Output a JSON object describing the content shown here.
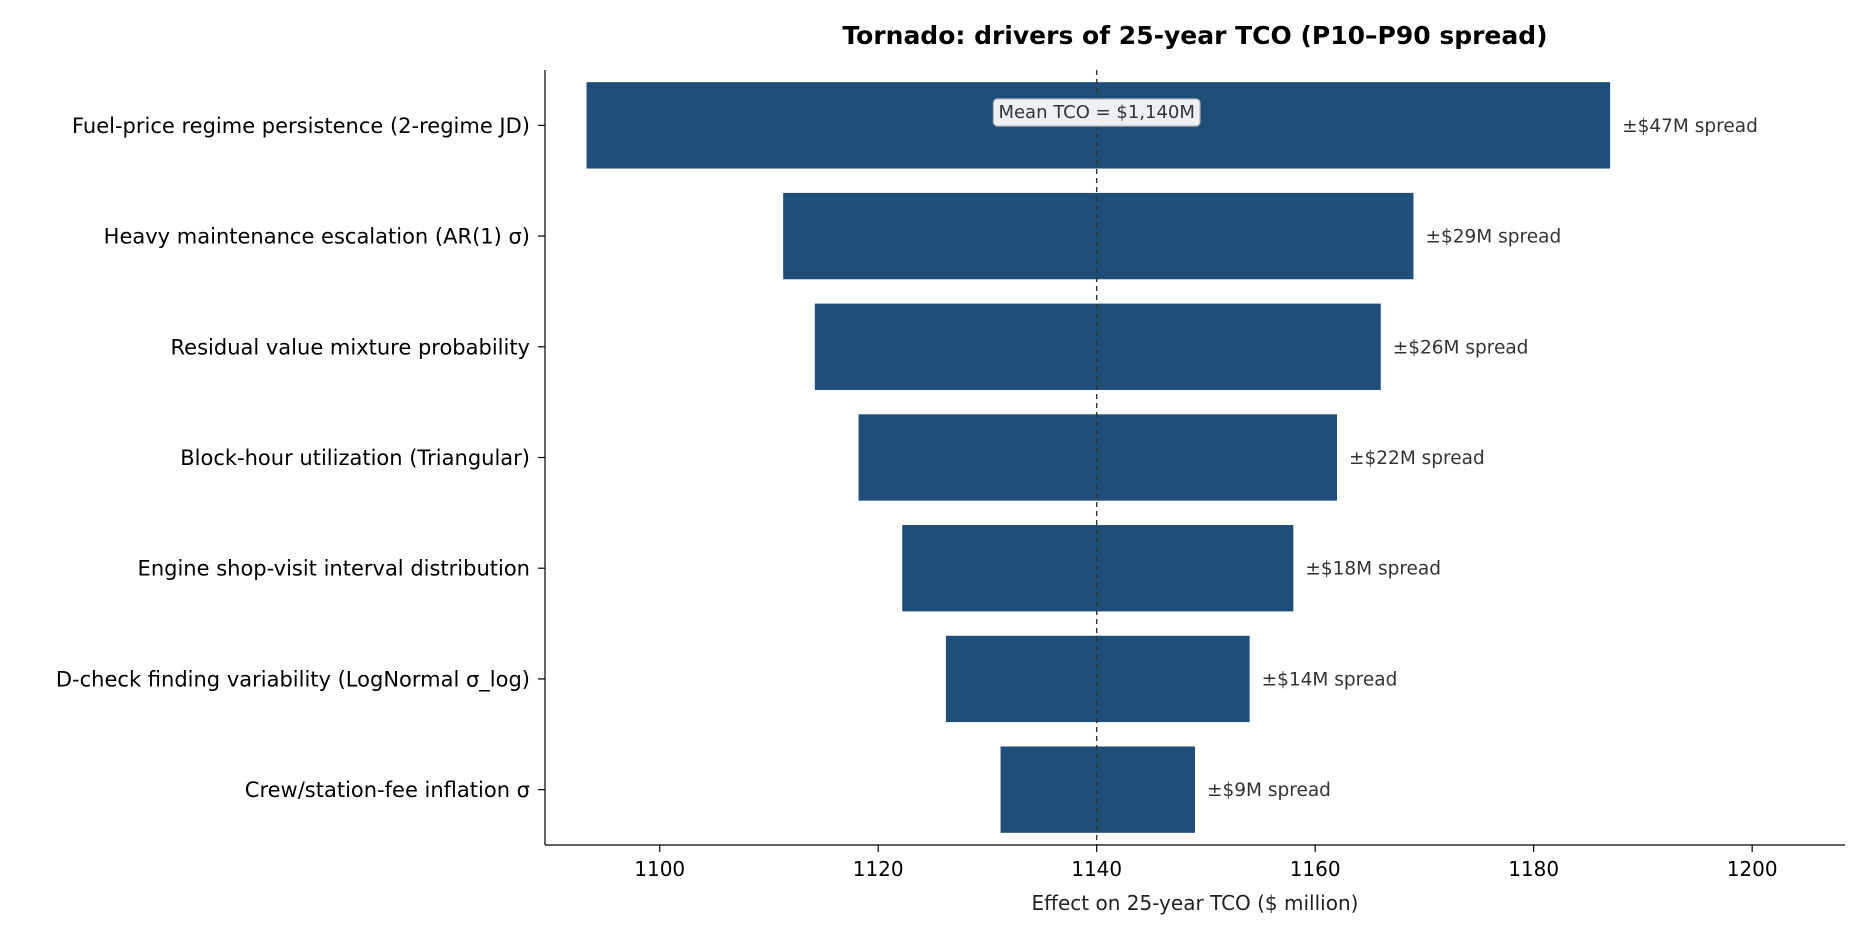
{
  "chart_data": {
    "type": "bar",
    "orientation": "horizontal",
    "subtype": "tornado",
    "title": "Tornado: drivers of 25-year TCO (P10–P90 spread)",
    "xlabel": "Effect on 25-year TCO  ($ million)",
    "ylabel": "",
    "xlim": [
      1089.5,
      1208.5
    ],
    "xticks": [
      1100,
      1120,
      1140,
      1160,
      1180,
      1200
    ],
    "grid": false,
    "bar_color": "#1f4e79",
    "reference_line": {
      "value": 1140,
      "label": "Mean TCO = $1,140M"
    },
    "categories": [
      "Fuel-price regime persistence (2-regime JD)",
      "Heavy maintenance escalation (AR(1) σ)",
      "Residual value mixture probability",
      "Block-hour utilization (Triangular)",
      "Engine shop-visit interval distribution",
      "D-check finding variability (LogNormal σ_log)",
      "Crew/station-fee inflation σ"
    ],
    "low": [
      1093.3,
      1111.3,
      1114.2,
      1118.2,
      1122.2,
      1126.2,
      1131.2
    ],
    "high": [
      1187.0,
      1169.0,
      1166.0,
      1162.0,
      1158.0,
      1154.0,
      1149.0
    ],
    "labels": [
      "±$47M spread",
      "±$29M spread",
      "±$26M spread",
      "±$22M spread",
      "±$18M spread",
      "±$14M spread",
      "±$9M spread"
    ]
  }
}
